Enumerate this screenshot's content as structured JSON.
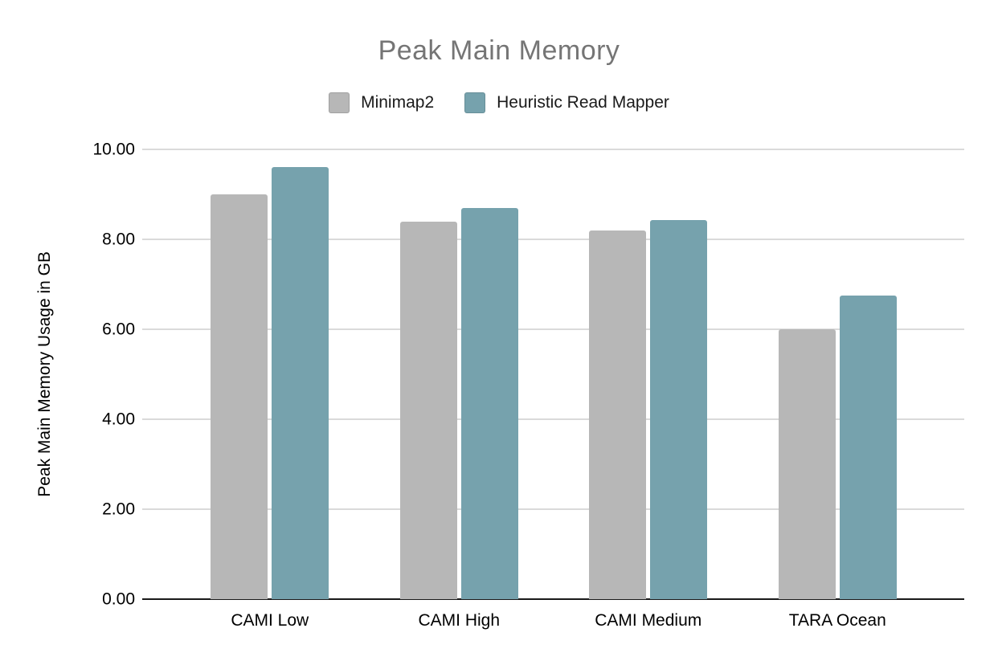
{
  "title": {
    "text": "Peak Main Memory",
    "color": "#757575"
  },
  "chart_data": {
    "type": "bar",
    "title": "Peak Main Memory",
    "categories": [
      "CAMI Low",
      "CAMI High",
      "CAMI Medium",
      "TARA Ocean"
    ],
    "series": [
      {
        "name": "Minimap2",
        "color": "#b7b7b7",
        "values": [
          9.0,
          8.4,
          8.2,
          6.0
        ]
      },
      {
        "name": "Heuristic Read Mapper",
        "color": "#76a2ad",
        "values": [
          9.6,
          8.7,
          8.43,
          6.75
        ]
      }
    ],
    "xlabel": "",
    "ylabel": "Peak Main Memory Usage in GB",
    "ylim": [
      0,
      10
    ],
    "yticks": [
      0,
      2,
      4,
      6,
      8,
      10
    ],
    "ytick_labels": [
      "0.00",
      "2.00",
      "4.00",
      "6.00",
      "8.00",
      "10.00"
    ],
    "grid": true,
    "legend_position": "top"
  }
}
